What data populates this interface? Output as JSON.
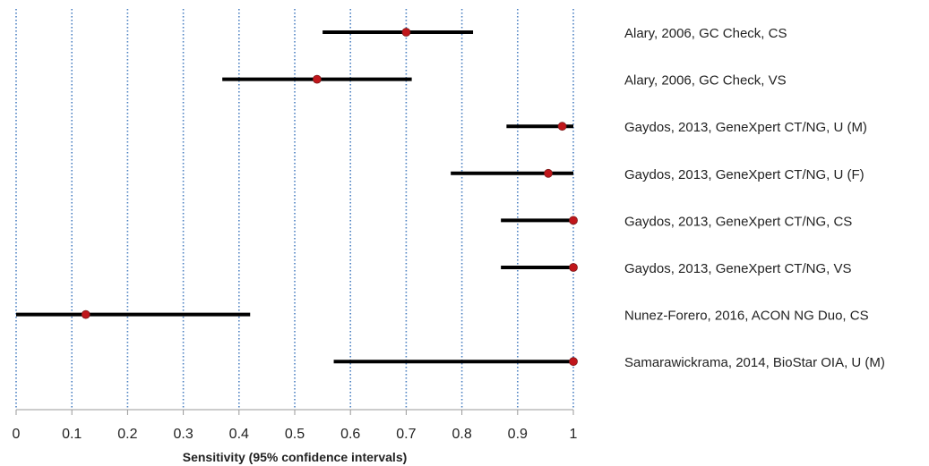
{
  "chart_data": {
    "type": "forest",
    "xlabel": "Sensitivity (95% confidence intervals)",
    "xlim": [
      0,
      1
    ],
    "xticks": [
      "0",
      "0.1",
      "0.2",
      "0.3",
      "0.4",
      "0.5",
      "0.6",
      "0.7",
      "0.8",
      "0.9",
      "1"
    ],
    "grid": "vertical dotted",
    "studies": [
      {
        "label": "Alary, 2006, GC Check, CS",
        "estimate": 0.7,
        "lower": 0.55,
        "upper": 0.82
      },
      {
        "label": "Alary, 2006, GC Check, VS",
        "estimate": 0.54,
        "lower": 0.37,
        "upper": 0.71
      },
      {
        "label": "Gaydos, 2013, GeneXpert CT/NG, U (M)",
        "estimate": 0.98,
        "lower": 0.88,
        "upper": 1.0
      },
      {
        "label": "Gaydos, 2013, GeneXpert CT/NG, U (F)",
        "estimate": 0.955,
        "lower": 0.78,
        "upper": 1.0
      },
      {
        "label": "Gaydos, 2013, GeneXpert CT/NG, CS",
        "estimate": 1.0,
        "lower": 0.87,
        "upper": 1.0
      },
      {
        "label": "Gaydos, 2013, GeneXpert CT/NG, VS",
        "estimate": 1.0,
        "lower": 0.87,
        "upper": 1.0
      },
      {
        "label": "Nunez-Forero, 2016, ACON NG Duo, CS",
        "estimate": 0.125,
        "lower": 0.0,
        "upper": 0.42
      },
      {
        "label": "Samarawickrama, 2014, BioStar OIA, U (M)",
        "estimate": 1.0,
        "lower": 0.57,
        "upper": 1.0
      }
    ],
    "colors": {
      "point": "#c0161b",
      "ci_line": "#000000",
      "grid": "#4a7fc1",
      "axis": "#999999"
    }
  }
}
